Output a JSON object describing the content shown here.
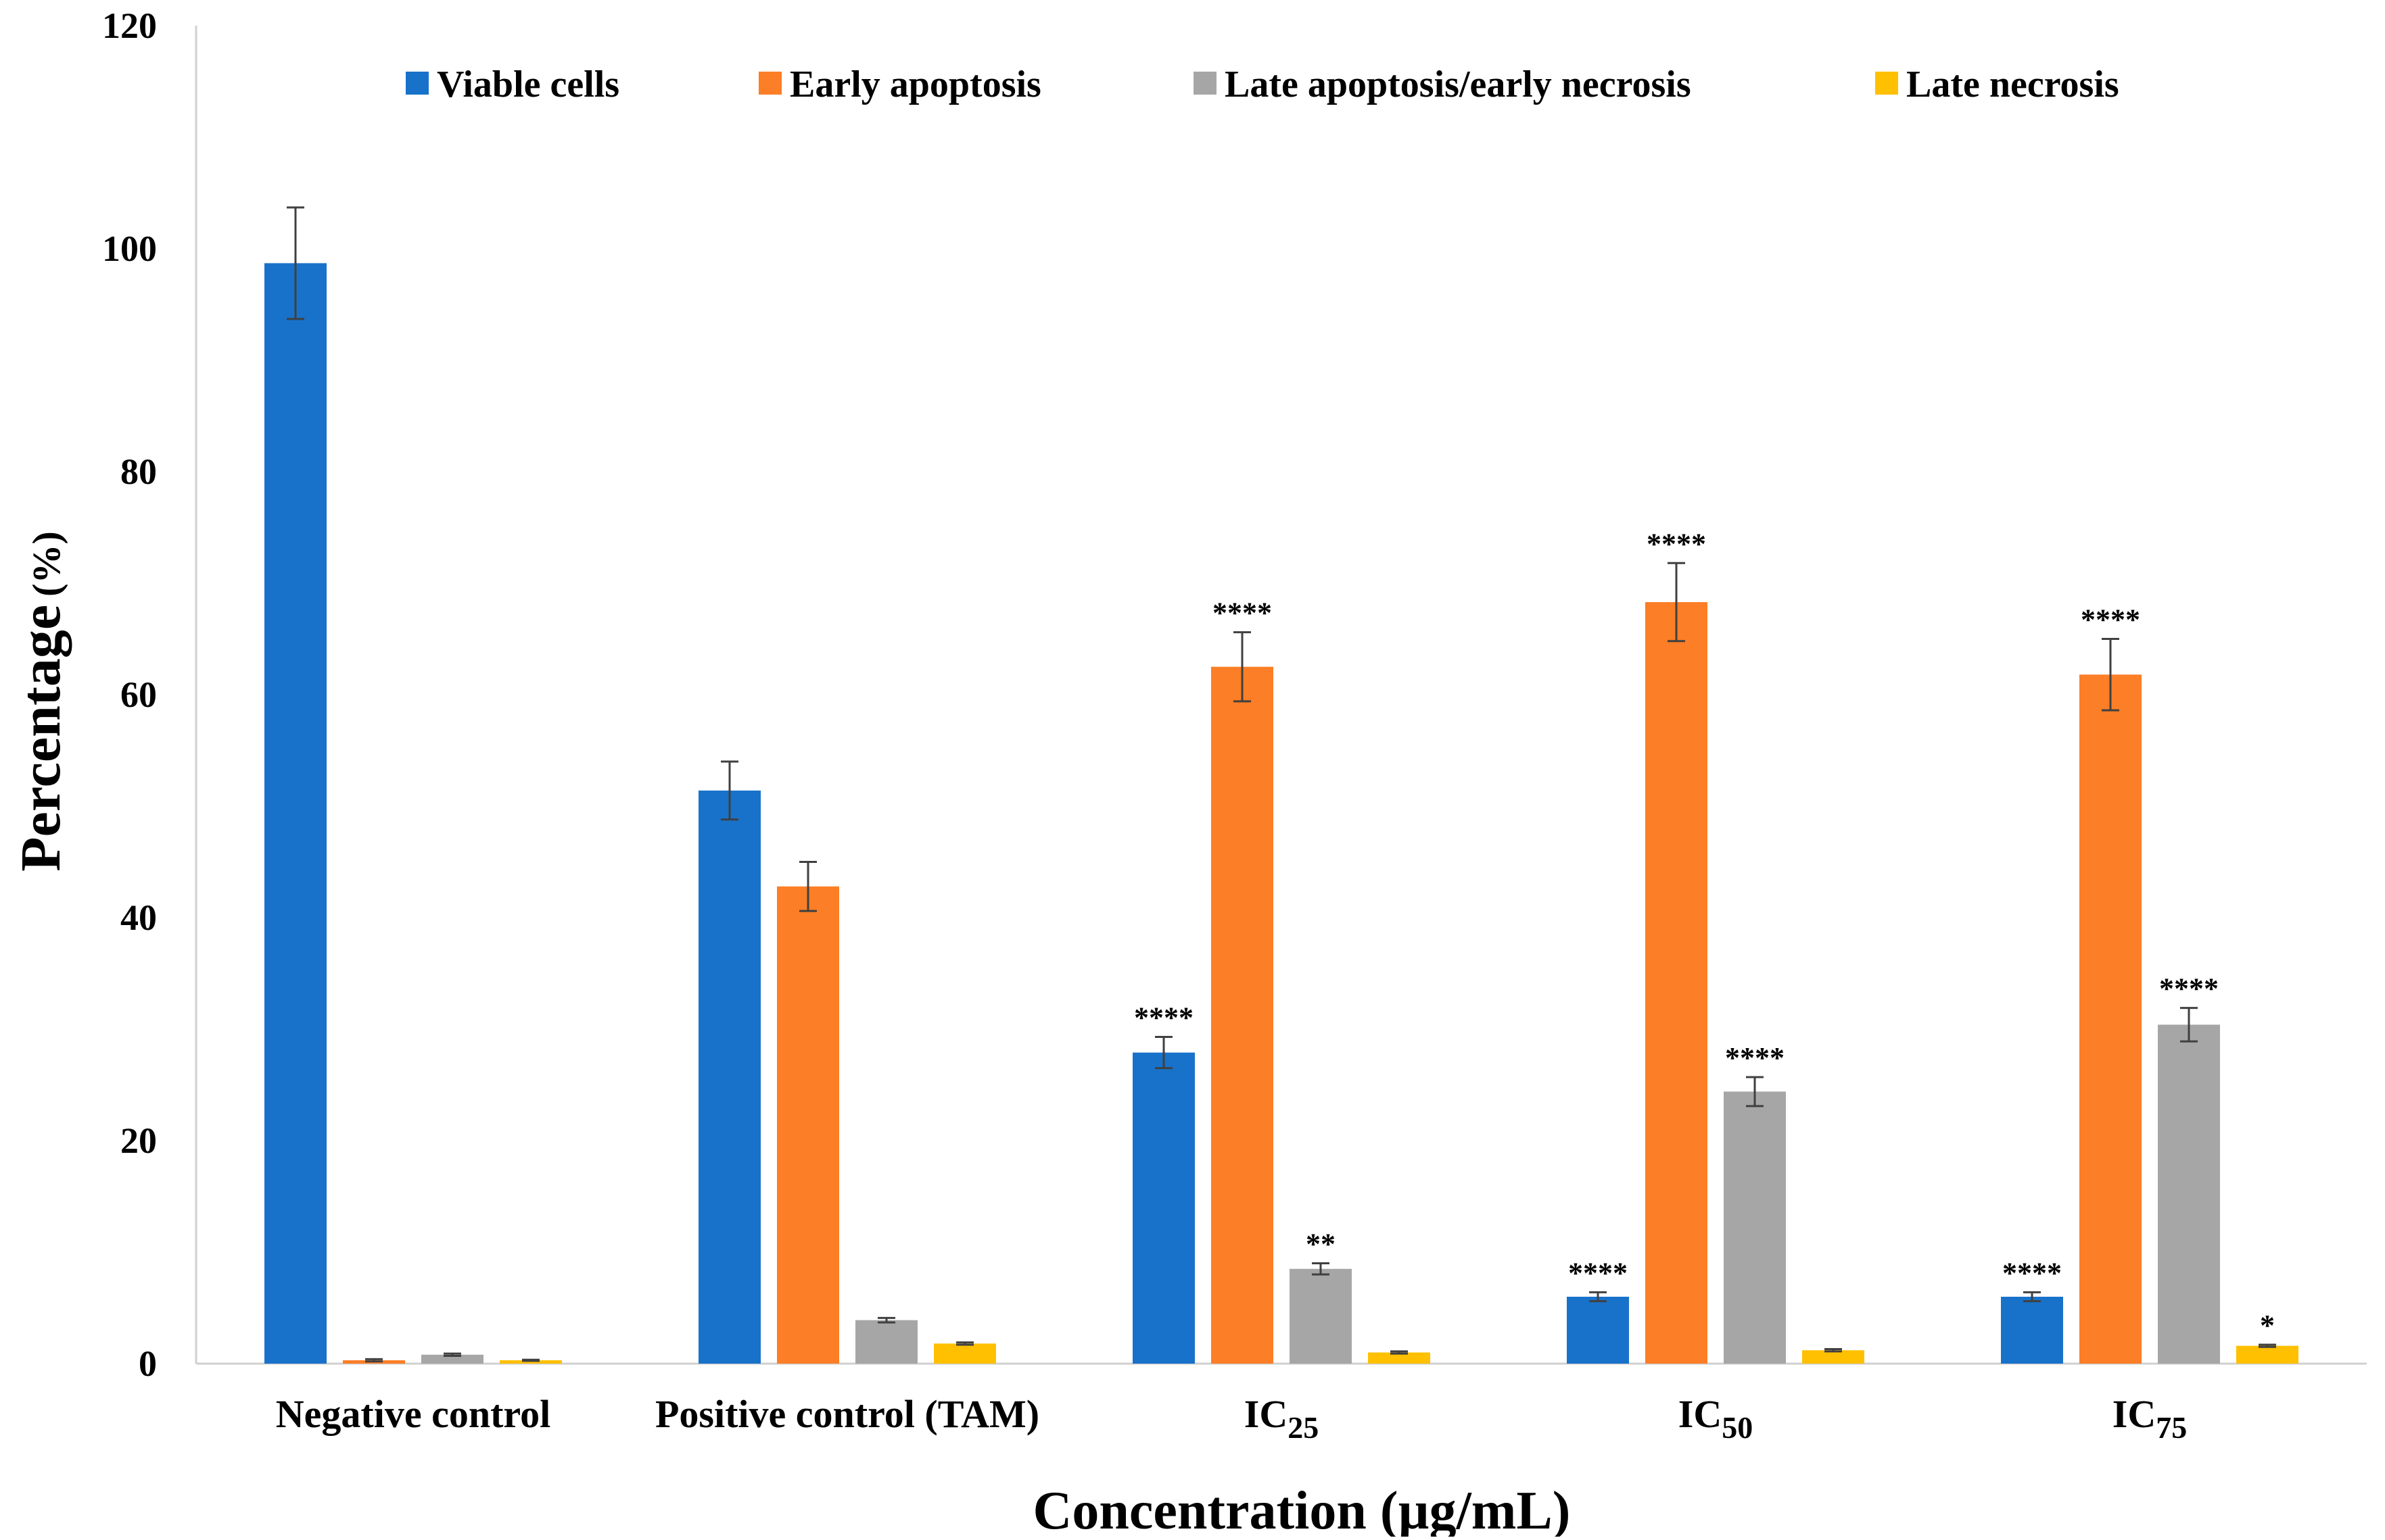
{
  "chart_data": {
    "type": "bar",
    "title": "",
    "xlabel": "Concentration (µg/mL)",
    "ylabel": {
      "main": "Percentage",
      "unit": "(%)"
    },
    "ylim": [
      0,
      120
    ],
    "yticks": [
      "0",
      "20",
      "40",
      "60",
      "80",
      "100",
      "120"
    ],
    "categories": [
      {
        "main": "Negative control",
        "sub": ""
      },
      {
        "main": "Positive control (TAM)",
        "sub": ""
      },
      {
        "main": "IC",
        "sub": "25"
      },
      {
        "main": "IC",
        "sub": "50"
      },
      {
        "main": "IC",
        "sub": "75"
      }
    ],
    "legend_position": "top",
    "series": [
      {
        "name": "Viable cells",
        "color": "#1872CA",
        "values": [
          98.7,
          51.4,
          27.9,
          6.0,
          6.0
        ],
        "errors": [
          5.0,
          2.6,
          1.4,
          0.4,
          0.4
        ],
        "significance": [
          "",
          "",
          "****",
          "****",
          "****"
        ]
      },
      {
        "name": "Early apoptosis",
        "color": "#FC7E26",
        "values": [
          0.3,
          42.8,
          62.5,
          68.3,
          61.8
        ],
        "errors": [
          0.1,
          2.2,
          3.1,
          3.5,
          3.2
        ],
        "significance": [
          "",
          "",
          "****",
          "****",
          "****"
        ]
      },
      {
        "name": "Late apoptosis/early necrosis",
        "color": "#A6A6A6",
        "values": [
          0.8,
          3.9,
          8.5,
          24.4,
          30.4
        ],
        "errors": [
          0.1,
          0.2,
          0.5,
          1.3,
          1.5
        ],
        "significance": [
          "",
          "",
          "**",
          "****",
          "****"
        ]
      },
      {
        "name": "Late necrosis",
        "color": "#FEC000",
        "values": [
          0.3,
          1.8,
          1.0,
          1.2,
          1.6
        ],
        "errors": [
          0.05,
          0.1,
          0.1,
          0.1,
          0.1
        ],
        "significance": [
          "",
          "",
          "",
          "",
          "*"
        ]
      }
    ]
  }
}
